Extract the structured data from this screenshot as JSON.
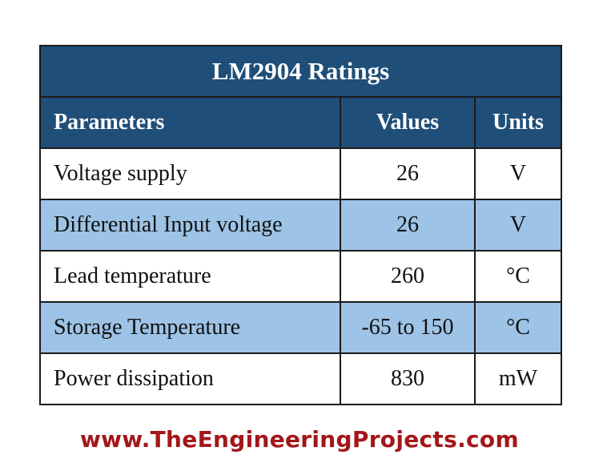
{
  "table": {
    "title": "LM2904 Ratings",
    "header": [
      "Parameters",
      "Values",
      "Units"
    ],
    "rows": [
      [
        "Voltage supply",
        "26",
        "V"
      ],
      [
        "Differential Input voltage",
        "26",
        "V"
      ],
      [
        "Lead temperature",
        "260",
        "°C"
      ],
      [
        "Storage Temperature",
        "-65 to 150",
        "°C"
      ],
      [
        "Power dissipation",
        "830",
        "mW"
      ]
    ]
  },
  "footer": {
    "url": "www.TheEngineeringProjects.com"
  }
}
